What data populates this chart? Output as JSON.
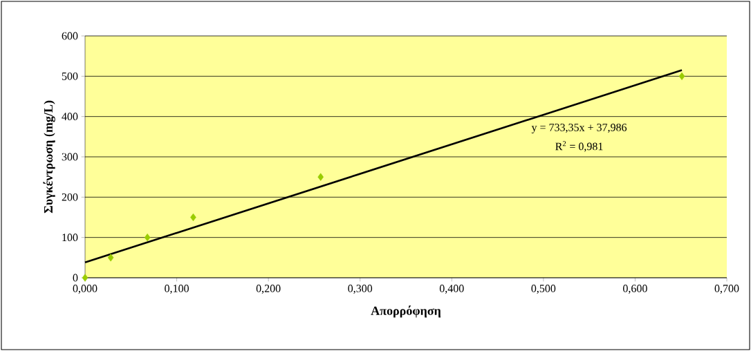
{
  "chart_data": {
    "type": "scatter",
    "xlabel": "Απορρόφηση",
    "ylabel": "Συγκέντρωση (mg/L)",
    "series": [
      {
        "color": "#99cc00",
        "marker": "diamond",
        "x": [
          0.0,
          0.028,
          0.068,
          0.118,
          0.257,
          0.651
        ],
        "values": [
          0,
          50,
          100,
          150,
          250,
          500
        ]
      },
      {
        "type": "line",
        "color": "#000000",
        "marker": "none",
        "line_style": "solid",
        "x": [
          0.0,
          0.651
        ],
        "values": [
          38,
          515
        ]
      }
    ],
    "annotations": [
      "y = 733,35x + 37,986",
      "R$^{2}$ = 0,981"
    ],
    "xlim": [
      0,
      0.7
    ],
    "ylim": [
      0,
      600
    ],
    "xticks": [
      {
        "value": 0,
        "label": "0,000"
      },
      {
        "value": 0.1,
        "label": "0,100"
      },
      {
        "value": 0.2,
        "label": "0,200"
      },
      {
        "value": 0.3,
        "label": "0,300"
      },
      {
        "value": 0.4,
        "label": "0,400"
      },
      {
        "value": 0.5,
        "label": "0,500"
      },
      {
        "value": 0.6,
        "label": "0,600"
      },
      {
        "value": 0.7,
        "label": "0,700"
      }
    ],
    "yticks": [
      0,
      100,
      200,
      300,
      400,
      500,
      600
    ],
    "grid": "y"
  }
}
